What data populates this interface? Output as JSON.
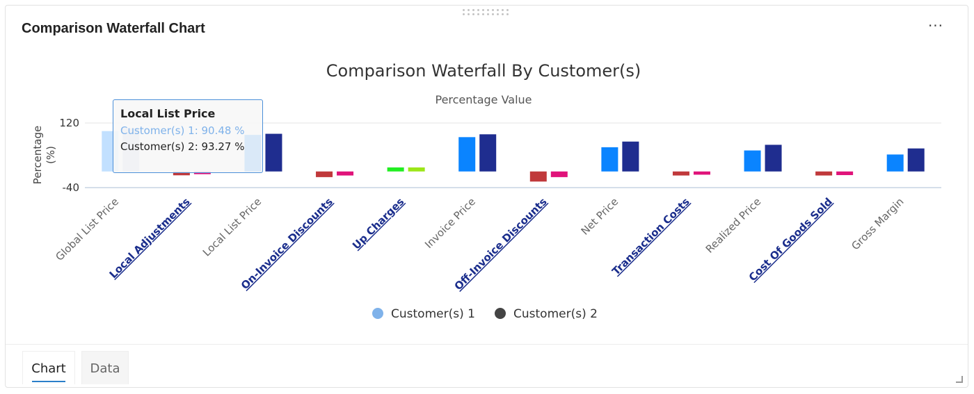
{
  "widget": {
    "title": "Comparison Waterfall Chart",
    "menu_label": "···"
  },
  "tabs": [
    {
      "label": "Chart",
      "active": true
    },
    {
      "label": "Data",
      "active": false
    }
  ],
  "tooltip": {
    "title": "Local List Price",
    "rows": [
      "Customer(s) 1: 90.48 %",
      "Customer(s) 2: 93.27 %"
    ]
  },
  "legend": [
    {
      "label": "Customer(s) 1",
      "color": "#7fb2ea"
    },
    {
      "label": "Customer(s) 2",
      "color": "#444444"
    }
  ],
  "chart_data": {
    "type": "bar",
    "title": "Comparison Waterfall By Customer(s)",
    "subtitle": "Percentage Value",
    "ylabel": "Percentage (%)",
    "xlabel": "",
    "ylim": [
      -40,
      120
    ],
    "yticks": [
      120,
      -40
    ],
    "grid": false,
    "legend_position": "bottom-center",
    "categories": [
      {
        "label": "Global List Price",
        "link": false
      },
      {
        "label": "Local Adjustments",
        "link": true
      },
      {
        "label": "Local List Price",
        "link": false
      },
      {
        "label": "On-Invoice Discounts",
        "link": true
      },
      {
        "label": "Up Charges",
        "link": true
      },
      {
        "label": "Invoice Price",
        "link": false
      },
      {
        "label": "Off-Invoice Discounts",
        "link": true
      },
      {
        "label": "Net Price",
        "link": false
      },
      {
        "label": "Transaction Costs",
        "link": true
      },
      {
        "label": "Realized Price",
        "link": false
      },
      {
        "label": "Cost Of Goods Sold",
        "link": true
      },
      {
        "label": "Gross Margin",
        "link": false
      }
    ],
    "series": [
      {
        "name": "Customer(s) 1",
        "values": [
          100,
          -9.5,
          90.48,
          -14,
          10,
          85,
          -25,
          60,
          -10,
          52,
          -10,
          42
        ],
        "colors": [
          "#0a84ff",
          "#c0393b",
          "#0a84ff",
          "#c0393b",
          "#22ee22",
          "#0a84ff",
          "#c0393b",
          "#0a84ff",
          "#c0393b",
          "#0a84ff",
          "#c0393b",
          "#0a84ff"
        ]
      },
      {
        "name": "Customer(s) 2",
        "values": [
          107,
          -6.7,
          93.27,
          -10,
          10,
          92,
          -14,
          74,
          -8,
          66,
          -9,
          57
        ],
        "colors": [
          "#1f2d8f",
          "#e0137a",
          "#1f2d8f",
          "#e0137a",
          "#9ce619",
          "#1f2d8f",
          "#e0137a",
          "#1f2d8f",
          "#e0137a",
          "#1f2d8f",
          "#e0137a",
          "#1f2d8f"
        ]
      }
    ],
    "highlight_index": 0
  }
}
